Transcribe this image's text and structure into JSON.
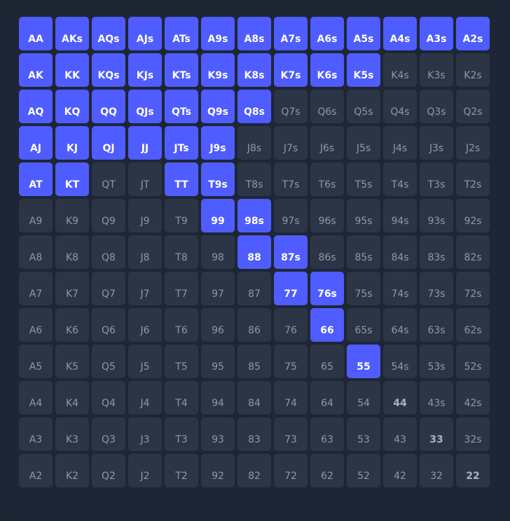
{
  "hand_grid": {
    "rows": [
      [
        "AA",
        "AKs",
        "AQs",
        "AJs",
        "ATs",
        "A9s",
        "A8s",
        "A7s",
        "A6s",
        "A5s",
        "A4s",
        "A3s",
        "A2s"
      ],
      [
        "AK",
        "KK",
        "KQs",
        "KJs",
        "KTs",
        "K9s",
        "K8s",
        "K7s",
        "K6s",
        "K5s",
        "K4s",
        "K3s",
        "K2s"
      ],
      [
        "AQ",
        "KQ",
        "QQ",
        "QJs",
        "QTs",
        "Q9s",
        "Q8s",
        "Q7s",
        "Q6s",
        "Q5s",
        "Q4s",
        "Q3s",
        "Q2s"
      ],
      [
        "AJ",
        "KJ",
        "QJ",
        "JJ",
        "JTs",
        "J9s",
        "J8s",
        "J7s",
        "J6s",
        "J5s",
        "J4s",
        "J3s",
        "J2s"
      ],
      [
        "AT",
        "KT",
        "QT",
        "JT",
        "TT",
        "T9s",
        "T8s",
        "T7s",
        "T6s",
        "T5s",
        "T4s",
        "T3s",
        "T2s"
      ],
      [
        "A9",
        "K9",
        "Q9",
        "J9",
        "T9",
        "99",
        "98s",
        "97s",
        "96s",
        "95s",
        "94s",
        "93s",
        "92s"
      ],
      [
        "A8",
        "K8",
        "Q8",
        "J8",
        "T8",
        "98",
        "88",
        "87s",
        "86s",
        "85s",
        "84s",
        "83s",
        "82s"
      ],
      [
        "A7",
        "K7",
        "Q7",
        "J7",
        "T7",
        "97",
        "87",
        "77",
        "76s",
        "75s",
        "74s",
        "73s",
        "72s"
      ],
      [
        "A6",
        "K6",
        "Q6",
        "J6",
        "T6",
        "96",
        "86",
        "76",
        "66",
        "65s",
        "64s",
        "63s",
        "62s"
      ],
      [
        "A5",
        "K5",
        "Q5",
        "J5",
        "T5",
        "95",
        "85",
        "75",
        "65",
        "55",
        "54s",
        "53s",
        "52s"
      ],
      [
        "A4",
        "K4",
        "Q4",
        "J4",
        "T4",
        "94",
        "84",
        "74",
        "64",
        "54",
        "44",
        "43s",
        "42s"
      ],
      [
        "A3",
        "K3",
        "Q3",
        "J3",
        "T3",
        "93",
        "83",
        "73",
        "63",
        "53",
        "43",
        "33",
        "32s"
      ],
      [
        "A2",
        "K2",
        "Q2",
        "J2",
        "T2",
        "92",
        "82",
        "72",
        "62",
        "52",
        "42",
        "32",
        "22"
      ]
    ],
    "selected": [
      "AA",
      "AKs",
      "AQs",
      "AJs",
      "ATs",
      "A9s",
      "A8s",
      "A7s",
      "A6s",
      "A5s",
      "A4s",
      "A3s",
      "A2s",
      "AK",
      "KK",
      "KQs",
      "KJs",
      "KTs",
      "K9s",
      "K8s",
      "K7s",
      "K6s",
      "K5s",
      "AQ",
      "KQ",
      "QQ",
      "QJs",
      "QTs",
      "Q9s",
      "Q8s",
      "AJ",
      "KJ",
      "QJ",
      "JJ",
      "JTs",
      "J9s",
      "AT",
      "KT",
      "TT",
      "T9s",
      "99",
      "98s",
      "88",
      "87s",
      "77",
      "76s",
      "66",
      "55"
    ],
    "colors": {
      "selected_bg": "#4f5cff",
      "unselected_bg": "#2c3546",
      "panel_bg": "#1e2635"
    }
  }
}
